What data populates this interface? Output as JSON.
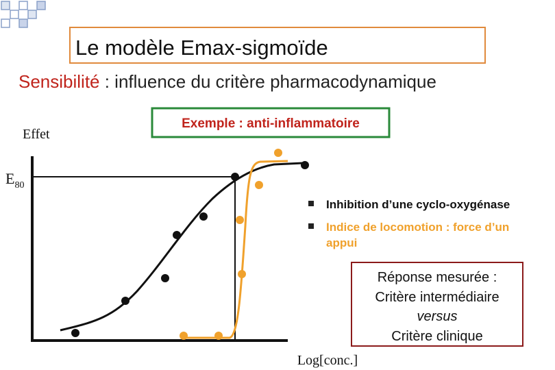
{
  "title": "Le modèle Emax-sigmoïde",
  "subtitle": {
    "highlight": "Sensibilité",
    "rest": " : influence du critère pharmacodynamique"
  },
  "y_label": "Effet",
  "e80": {
    "letter": "E",
    "sub": "80"
  },
  "example": "Exemple : anti-inflammatoire",
  "bullets": [
    [
      "Inhibition d’une cyclo-oxygénase"
    ],
    [
      "Indice de locomotion : force d’un",
      "appui"
    ]
  ],
  "box": {
    "line1": "Réponse mesurée :",
    "line2": "Critère intermédiaire",
    "line3": "versus",
    "line4": "Critère clinique"
  },
  "x_label": "Log[conc.]"
}
